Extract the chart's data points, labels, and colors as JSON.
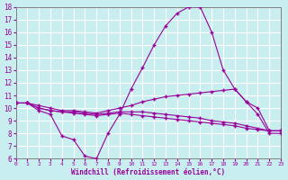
{
  "background_color": "#c8eef0",
  "grid_color": "#ffffff",
  "line_color": "#990099",
  "xlabel": "Windchill (Refroidissement éolien,°C)",
  "xlim": [
    0,
    23
  ],
  "ylim": [
    6,
    18
  ],
  "yticks": [
    6,
    7,
    8,
    9,
    10,
    11,
    12,
    13,
    14,
    15,
    16,
    17,
    18
  ],
  "xticks": [
    0,
    1,
    2,
    3,
    4,
    5,
    6,
    7,
    8,
    9,
    10,
    11,
    12,
    13,
    14,
    15,
    16,
    17,
    18,
    19,
    20,
    21,
    22,
    23
  ],
  "series1_x": [
    0,
    1,
    2,
    3,
    4,
    5,
    6,
    7,
    8,
    9,
    10,
    11,
    12,
    13,
    14,
    15,
    16,
    17,
    18,
    19,
    20,
    21,
    22,
    23
  ],
  "series1_y": [
    10.4,
    10.4,
    9.8,
    9.5,
    7.8,
    7.5,
    6.2,
    6.0,
    8.0,
    9.5,
    11.5,
    13.2,
    15.0,
    16.5,
    17.5,
    18.0,
    18.0,
    16.0,
    13.0,
    11.5,
    10.5,
    9.5,
    8.0,
    8.0
  ],
  "series2_x": [
    0,
    1,
    2,
    3,
    4,
    5,
    6,
    7,
    8,
    9,
    10,
    11,
    12,
    13,
    14,
    15,
    16,
    17,
    18,
    19,
    20,
    21,
    22,
    23
  ],
  "series2_y": [
    10.4,
    10.4,
    10.2,
    10.0,
    9.8,
    9.8,
    9.7,
    9.6,
    9.8,
    10.0,
    10.2,
    10.5,
    10.7,
    10.9,
    11.0,
    11.1,
    11.2,
    11.3,
    11.4,
    11.5,
    10.5,
    10.0,
    8.2,
    8.2
  ],
  "series3_x": [
    0,
    1,
    2,
    3,
    4,
    5,
    6,
    7,
    8,
    9,
    10,
    11,
    12,
    13,
    14,
    15,
    16,
    17,
    18,
    19,
    20,
    21,
    22,
    23
  ],
  "series3_y": [
    10.4,
    10.4,
    10.0,
    9.8,
    9.7,
    9.7,
    9.6,
    9.5,
    9.6,
    9.7,
    9.7,
    9.7,
    9.6,
    9.5,
    9.4,
    9.3,
    9.2,
    9.0,
    8.9,
    8.8,
    8.6,
    8.4,
    8.2,
    8.2
  ],
  "series4_x": [
    0,
    1,
    2,
    3,
    4,
    5,
    6,
    7,
    8,
    9,
    10,
    11,
    12,
    13,
    14,
    15,
    16,
    17,
    18,
    19,
    20,
    21,
    22,
    23
  ],
  "series4_y": [
    10.4,
    10.4,
    10.0,
    9.8,
    9.7,
    9.6,
    9.5,
    9.4,
    9.5,
    9.6,
    9.5,
    9.4,
    9.3,
    9.2,
    9.1,
    9.0,
    8.9,
    8.8,
    8.7,
    8.6,
    8.4,
    8.3,
    8.2,
    8.2
  ]
}
